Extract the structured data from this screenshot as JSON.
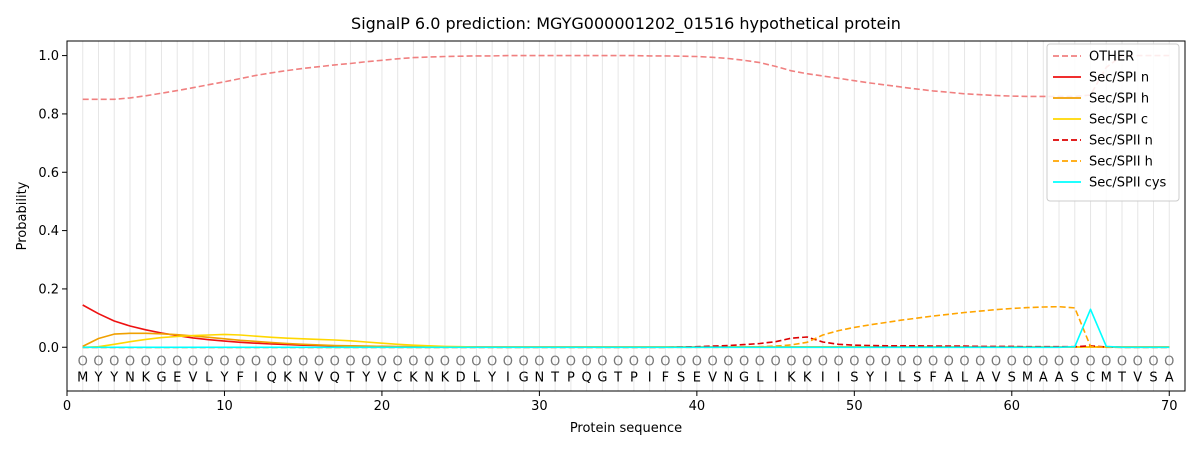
{
  "chart_data": {
    "type": "line",
    "title": "SignalP 6.0 prediction: MGYG000001202_01516 hypothetical protein",
    "xlabel": "Protein sequence",
    "ylabel": "Probability",
    "xlim": [
      0,
      71
    ],
    "ylim": [
      -0.15,
      1.05
    ],
    "x_ticks": [
      0,
      10,
      20,
      30,
      40,
      50,
      60,
      70
    ],
    "y_ticks": [
      0.0,
      0.2,
      0.4,
      0.6,
      0.8,
      1.0
    ],
    "grid": "vertical lines at each residue",
    "legend_position": "top-right",
    "sequence": [
      "M",
      "Y",
      "Y",
      "N",
      "K",
      "G",
      "E",
      "V",
      "L",
      "Y",
      "F",
      "I",
      "Q",
      "K",
      "N",
      "V",
      "Q",
      "T",
      "Y",
      "V",
      "C",
      "K",
      "N",
      "K",
      "D",
      "L",
      "Y",
      "I",
      "G",
      "N",
      "T",
      "P",
      "Q",
      "G",
      "T",
      "P",
      "I",
      "F",
      "S",
      "E",
      "V",
      "N",
      "G",
      "L",
      "I",
      "K",
      "K",
      "I",
      "I",
      "S",
      "Y",
      "I",
      "L",
      "S",
      "F",
      "A",
      "L",
      "A",
      "V",
      "S",
      "M",
      "A",
      "A",
      "S",
      "C",
      "M",
      "T",
      "V",
      "S",
      "A"
    ],
    "region_marker": "O",
    "x": [
      1,
      2,
      3,
      4,
      5,
      6,
      7,
      8,
      9,
      10,
      11,
      12,
      13,
      14,
      15,
      16,
      17,
      18,
      19,
      20,
      21,
      22,
      23,
      24,
      25,
      26,
      27,
      28,
      29,
      30,
      31,
      32,
      33,
      34,
      35,
      36,
      37,
      38,
      39,
      40,
      41,
      42,
      43,
      44,
      45,
      46,
      47,
      48,
      49,
      50,
      51,
      52,
      53,
      54,
      55,
      56,
      57,
      58,
      59,
      60,
      61,
      62,
      63,
      64,
      65,
      66,
      67,
      68,
      69,
      70
    ],
    "series": [
      {
        "name": "OTHER",
        "color": "#f08080",
        "dash": "dashed",
        "values": [
          0.85,
          0.85,
          0.85,
          0.855,
          0.862,
          0.871,
          0.88,
          0.89,
          0.9,
          0.91,
          0.921,
          0.932,
          0.941,
          0.949,
          0.956,
          0.962,
          0.968,
          0.973,
          0.979,
          0.984,
          0.989,
          0.993,
          0.995,
          0.997,
          0.998,
          0.999,
          0.999,
          1.0,
          1.0,
          1.0,
          1.0,
          1.0,
          1.0,
          1.0,
          1.0,
          1.0,
          0.999,
          0.999,
          0.998,
          0.997,
          0.994,
          0.99,
          0.984,
          0.976,
          0.963,
          0.948,
          0.938,
          0.93,
          0.922,
          0.914,
          0.906,
          0.899,
          0.892,
          0.885,
          0.879,
          0.874,
          0.869,
          0.866,
          0.863,
          0.861,
          0.86,
          0.86,
          0.86,
          0.86,
          0.865,
          0.96,
          1.0,
          1.0,
          1.0,
          1.0
        ]
      },
      {
        "name": "Sec/SPI n",
        "color": "#ee1111",
        "dash": "solid",
        "values": [
          0.145,
          0.115,
          0.09,
          0.073,
          0.06,
          0.049,
          0.04,
          0.032,
          0.026,
          0.021,
          0.017,
          0.014,
          0.011,
          0.009,
          0.007,
          0.006,
          0.005,
          0.004,
          0.003,
          0.003,
          0.002,
          0.002,
          0.002,
          0.001,
          0.001,
          0.001,
          0.001,
          0.001,
          0.001,
          0.001,
          0.001,
          0.001,
          0.001,
          0.001,
          0.001,
          0.001,
          0.001,
          0.001,
          0.001,
          0.001,
          0.001,
          0.001,
          0.001,
          0.001,
          0.001,
          0.001,
          0.001,
          0.001,
          0.001,
          0.001,
          0.001,
          0.001,
          0.001,
          0.001,
          0.001,
          0.001,
          0.001,
          0.001,
          0.001,
          0.001,
          0.001,
          0.001,
          0.001,
          0.001,
          0.001,
          0.001,
          0.001,
          0.001,
          0.001,
          0.001
        ]
      },
      {
        "name": "Sec/SPI h",
        "color": "#f0a000",
        "dash": "solid",
        "values": [
          0.003,
          0.03,
          0.045,
          0.048,
          0.048,
          0.046,
          0.043,
          0.039,
          0.034,
          0.029,
          0.024,
          0.02,
          0.016,
          0.013,
          0.01,
          0.008,
          0.006,
          0.005,
          0.004,
          0.003,
          0.002,
          0.002,
          0.001,
          0.001,
          0.001,
          0.001,
          0.001,
          0.001,
          0.001,
          0.001,
          0.001,
          0.001,
          0.001,
          0.001,
          0.001,
          0.001,
          0.001,
          0.001,
          0.001,
          0.001,
          0.001,
          0.001,
          0.001,
          0.001,
          0.001,
          0.001,
          0.001,
          0.001,
          0.001,
          0.001,
          0.001,
          0.001,
          0.001,
          0.001,
          0.001,
          0.001,
          0.001,
          0.001,
          0.001,
          0.001,
          0.001,
          0.001,
          0.001,
          0.001,
          0.001,
          0.001,
          0.001,
          0.001,
          0.001,
          0.001
        ]
      },
      {
        "name": "Sec/SPI c",
        "color": "#ffd700",
        "dash": "solid",
        "values": [
          0.0,
          0.002,
          0.01,
          0.019,
          0.027,
          0.033,
          0.037,
          0.04,
          0.042,
          0.044,
          0.042,
          0.038,
          0.034,
          0.031,
          0.029,
          0.027,
          0.025,
          0.022,
          0.018,
          0.014,
          0.01,
          0.007,
          0.005,
          0.003,
          0.002,
          0.001,
          0.001,
          0.001,
          0.001,
          0.001,
          0.001,
          0.001,
          0.001,
          0.001,
          0.001,
          0.001,
          0.001,
          0.001,
          0.001,
          0.001,
          0.001,
          0.001,
          0.001,
          0.001,
          0.001,
          0.001,
          0.001,
          0.001,
          0.001,
          0.001,
          0.001,
          0.001,
          0.001,
          0.001,
          0.001,
          0.001,
          0.001,
          0.001,
          0.001,
          0.001,
          0.001,
          0.001,
          0.001,
          0.001,
          0.001,
          0.001,
          0.001,
          0.001,
          0.001,
          0.001
        ]
      },
      {
        "name": "Sec/SPII n",
        "color": "#dd0000",
        "dash": "dashed",
        "values": [
          0.0,
          0.0,
          0.0,
          0.0,
          0.0,
          0.0,
          0.0,
          0.0,
          0.0,
          0.0,
          0.0,
          0.0,
          0.0,
          0.0,
          0.0,
          0.0,
          0.0,
          0.0,
          0.0,
          0.0,
          0.0,
          0.0,
          0.0,
          0.0,
          0.0,
          0.0,
          0.0,
          0.0,
          0.0,
          0.0,
          0.0,
          0.0,
          0.0,
          0.0,
          0.0,
          0.0,
          0.0,
          0.0,
          0.001,
          0.002,
          0.004,
          0.006,
          0.009,
          0.013,
          0.019,
          0.031,
          0.035,
          0.018,
          0.01,
          0.007,
          0.006,
          0.005,
          0.005,
          0.005,
          0.004,
          0.004,
          0.004,
          0.003,
          0.003,
          0.003,
          0.002,
          0.002,
          0.002,
          0.002,
          0.005,
          0.001,
          0.0,
          0.0,
          0.0,
          0.0
        ]
      },
      {
        "name": "Sec/SPII h",
        "color": "#ffa500",
        "dash": "dashed",
        "values": [
          0.0,
          0.0,
          0.0,
          0.0,
          0.0,
          0.0,
          0.0,
          0.0,
          0.0,
          0.0,
          0.0,
          0.0,
          0.0,
          0.0,
          0.0,
          0.0,
          0.0,
          0.0,
          0.0,
          0.0,
          0.0,
          0.0,
          0.0,
          0.0,
          0.0,
          0.0,
          0.0,
          0.0,
          0.0,
          0.0,
          0.0,
          0.0,
          0.0,
          0.0,
          0.0,
          0.0,
          0.0,
          0.0,
          0.0,
          0.0,
          0.0,
          0.0,
          0.001,
          0.002,
          0.004,
          0.008,
          0.017,
          0.042,
          0.057,
          0.068,
          0.077,
          0.085,
          0.093,
          0.1,
          0.107,
          0.113,
          0.119,
          0.124,
          0.129,
          0.133,
          0.136,
          0.138,
          0.139,
          0.135,
          0.003,
          0.0,
          0.0,
          0.0,
          0.0,
          0.0
        ]
      },
      {
        "name": "Sec/SPII cys",
        "color": "#00ffff",
        "dash": "solid",
        "values": [
          0.0,
          0.0,
          0.0,
          0.0,
          0.0,
          0.0,
          0.0,
          0.0,
          0.0,
          0.0,
          0.0,
          0.0,
          0.0,
          0.0,
          0.0,
          0.0,
          0.0,
          0.0,
          0.0,
          0.0,
          0.0,
          0.0,
          0.0,
          0.0,
          0.0,
          0.0,
          0.0,
          0.0,
          0.0,
          0.0,
          0.0,
          0.0,
          0.0,
          0.0,
          0.0,
          0.0,
          0.0,
          0.0,
          0.0,
          0.0,
          0.0,
          0.0,
          0.0,
          0.0,
          0.0,
          0.0,
          0.0,
          0.0,
          0.0,
          0.0,
          0.0,
          0.0,
          0.0,
          0.0,
          0.0,
          0.0,
          0.0,
          0.0,
          0.0,
          0.0,
          0.0,
          0.0,
          0.0,
          0.002,
          0.13,
          0.003,
          0.0,
          0.0,
          0.0,
          0.0
        ]
      }
    ]
  }
}
